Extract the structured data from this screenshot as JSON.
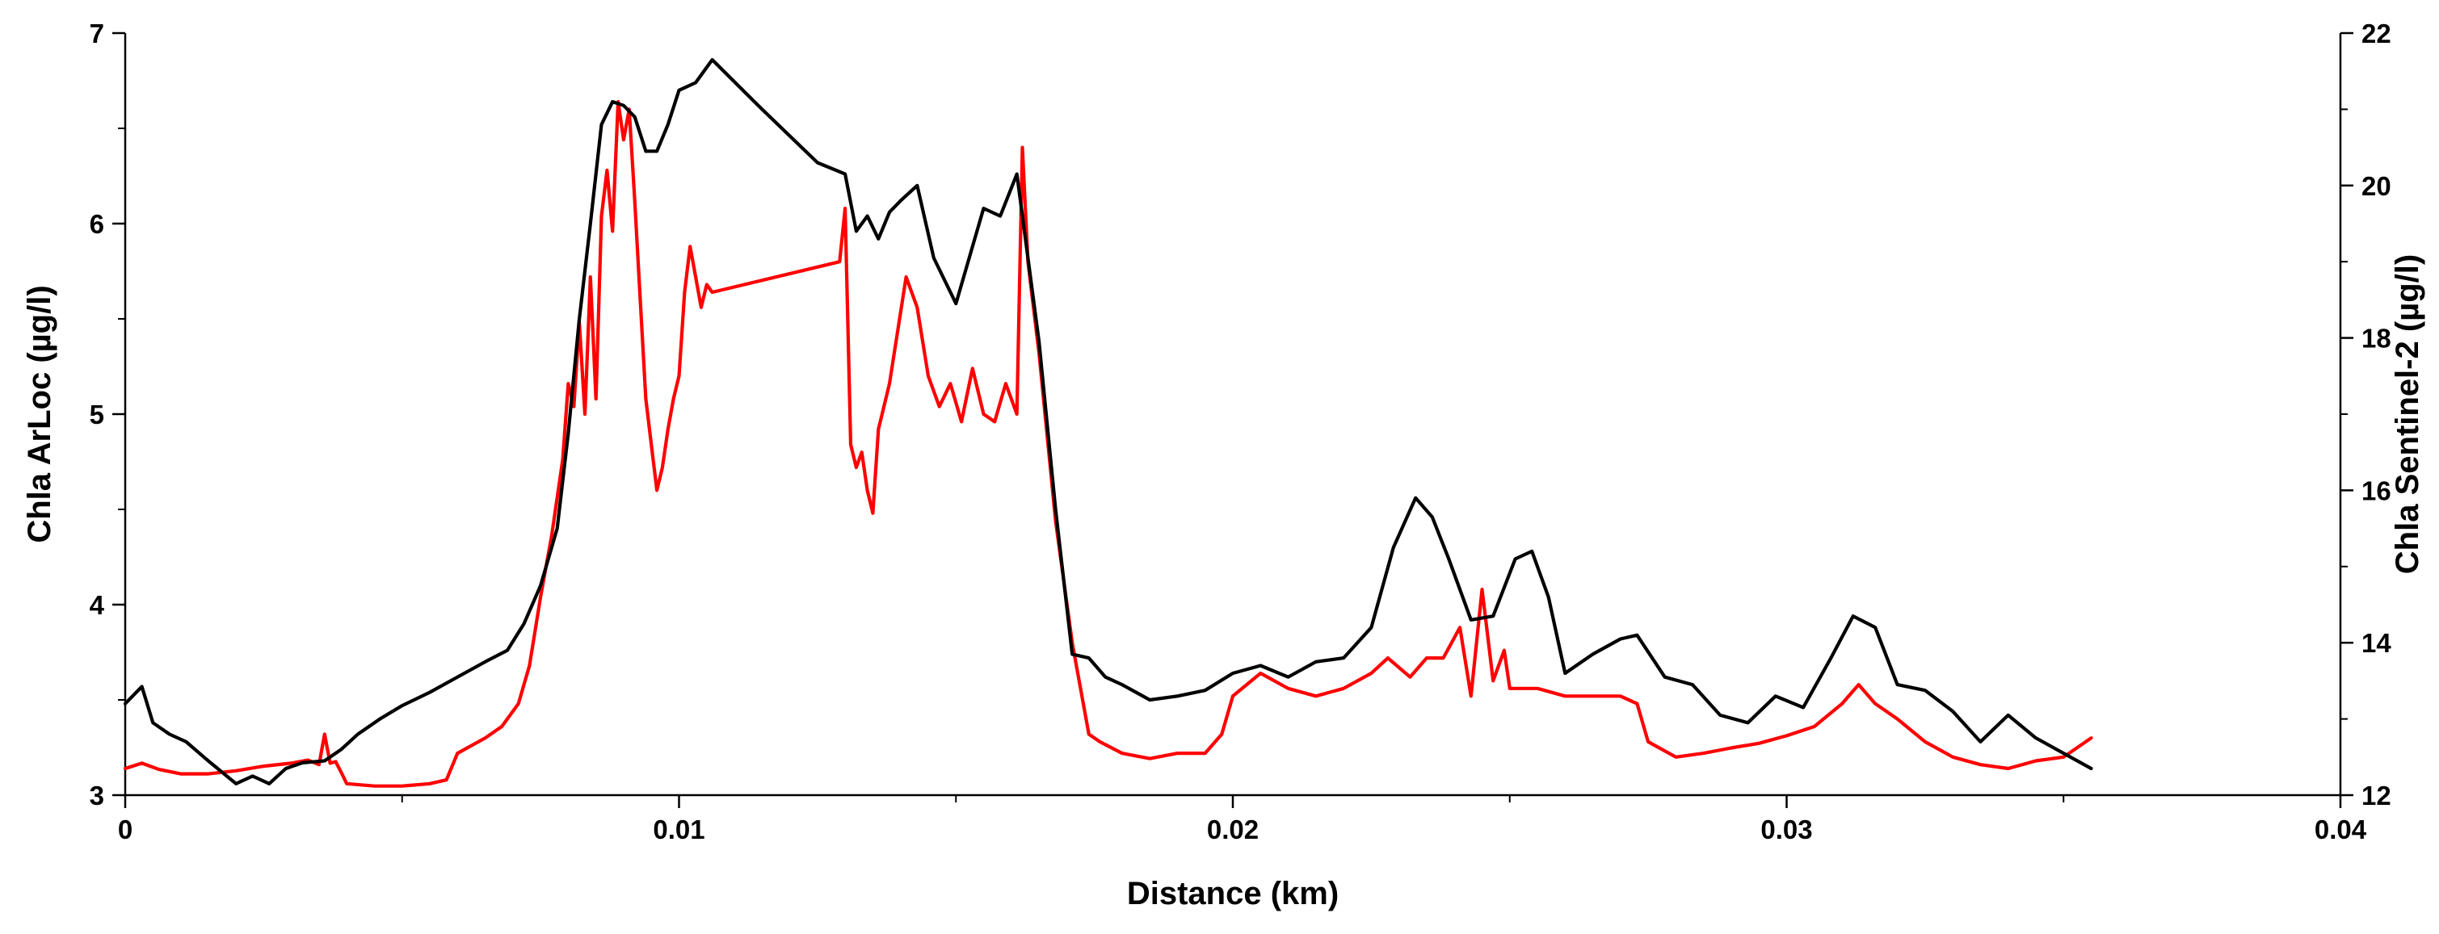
{
  "chart_data": {
    "type": "line",
    "xlabel": "Distance (km)",
    "ylabel_left": "Chla ArLoc (µg/l)",
    "ylabel_right": "Chla Sentinel-2 (µg/l)",
    "xlim": [
      0,
      0.04
    ],
    "ylim_left": [
      3,
      7
    ],
    "ylim_right": [
      12,
      22
    ],
    "x_ticks": [
      "0",
      "0.01",
      "0.02",
      "0.03",
      "0.04"
    ],
    "y_left_ticks": [
      "3",
      "4",
      "5",
      "6",
      "7"
    ],
    "y_right_ticks": [
      "12",
      "14",
      "16",
      "18",
      "20",
      "22"
    ],
    "grid": false,
    "legend": "none",
    "series": [
      {
        "axis": "left",
        "color": "#000000",
        "x": [
          0,
          0.0003,
          0.0005,
          0.0008,
          0.0011,
          0.0015,
          0.002,
          0.0023,
          0.0026,
          0.0029,
          0.0032,
          0.0036,
          0.0039,
          0.0042,
          0.0046,
          0.005,
          0.0055,
          0.006,
          0.0065,
          0.0069,
          0.0072,
          0.0075,
          0.0078,
          0.008,
          0.0082,
          0.0084,
          0.0086,
          0.0088,
          0.009,
          0.0092,
          0.0094,
          0.0096,
          0.0098,
          0.01,
          0.0103,
          0.0106,
          0.0115,
          0.0125,
          0.013,
          0.0132,
          0.0134,
          0.0136,
          0.0138,
          0.014,
          0.0143,
          0.0146,
          0.015,
          0.0155,
          0.0158,
          0.0161,
          0.0165,
          0.0168,
          0.0171,
          0.0174,
          0.0177,
          0.018,
          0.0185,
          0.019,
          0.0195,
          0.02,
          0.0205,
          0.021,
          0.0215,
          0.022,
          0.0225,
          0.0229,
          0.0233,
          0.0236,
          0.0239,
          0.0243,
          0.0247,
          0.0251,
          0.0254,
          0.0257,
          0.026,
          0.0265,
          0.027,
          0.0273,
          0.0278,
          0.0283,
          0.0288,
          0.0293,
          0.0298,
          0.0303,
          0.0308,
          0.0312,
          0.0316,
          0.032,
          0.0325,
          0.033,
          0.0335,
          0.034,
          0.0345,
          0.035,
          0.0355
        ],
        "y": [
          3.48,
          3.57,
          3.38,
          3.32,
          3.28,
          3.18,
          3.06,
          3.1,
          3.06,
          3.14,
          3.17,
          3.18,
          3.24,
          3.32,
          3.4,
          3.47,
          3.54,
          3.62,
          3.7,
          3.76,
          3.9,
          4.1,
          4.4,
          4.9,
          5.5,
          6.0,
          6.52,
          6.64,
          6.62,
          6.56,
          6.38,
          6.38,
          6.52,
          6.7,
          6.74,
          6.86,
          6.6,
          6.32,
          6.26,
          5.96,
          6.04,
          5.92,
          6.06,
          6.12,
          6.2,
          5.82,
          5.58,
          6.08,
          6.04,
          6.26,
          5.38,
          4.5,
          3.74,
          3.72,
          3.62,
          3.58,
          3.5,
          3.52,
          3.55,
          3.64,
          3.68,
          3.62,
          3.7,
          3.72,
          3.88,
          4.3,
          4.56,
          4.46,
          4.24,
          3.92,
          3.94,
          4.24,
          4.28,
          4.04,
          3.64,
          3.74,
          3.82,
          3.84,
          3.62,
          3.58,
          3.42,
          3.38,
          3.52,
          3.46,
          3.72,
          3.94,
          3.88,
          3.58,
          3.55,
          3.44,
          3.28,
          3.42,
          3.3,
          3.22,
          3.14
        ]
      },
      {
        "axis": "right",
        "color": "#ff0000",
        "x": [
          0,
          0.0003,
          0.0006,
          0.001,
          0.0015,
          0.002,
          0.0025,
          0.003,
          0.0033,
          0.0035,
          0.0036,
          0.0037,
          0.0038,
          0.0039,
          0.004,
          0.0045,
          0.005,
          0.0055,
          0.0058,
          0.006,
          0.0065,
          0.0068,
          0.0071,
          0.0073,
          0.0075,
          0.0077,
          0.0079,
          0.008,
          0.0081,
          0.0082,
          0.0083,
          0.0084,
          0.0085,
          0.0086,
          0.0087,
          0.0088,
          0.0089,
          0.009,
          0.0091,
          0.0092,
          0.0093,
          0.0094,
          0.0095,
          0.0096,
          0.0097,
          0.0098,
          0.0099,
          0.01,
          0.0101,
          0.0102,
          0.0103,
          0.0104,
          0.0105,
          0.0106,
          0.0129,
          0.013,
          0.0131,
          0.0132,
          0.0133,
          0.0134,
          0.0135,
          0.0136,
          0.0138,
          0.0141,
          0.0143,
          0.0145,
          0.0147,
          0.0149,
          0.0151,
          0.0153,
          0.0155,
          0.0157,
          0.0159,
          0.0161,
          0.0162,
          0.0163,
          0.0165,
          0.0168,
          0.0171,
          0.0174,
          0.0176,
          0.018,
          0.0185,
          0.019,
          0.0195,
          0.0198,
          0.02,
          0.0205,
          0.021,
          0.0215,
          0.022,
          0.0225,
          0.0228,
          0.0232,
          0.0235,
          0.0238,
          0.0241,
          0.0243,
          0.0245,
          0.0247,
          0.0249,
          0.025,
          0.0255,
          0.026,
          0.0265,
          0.027,
          0.0273,
          0.0275,
          0.028,
          0.0285,
          0.029,
          0.0295,
          0.03,
          0.0305,
          0.031,
          0.0313,
          0.0316,
          0.032,
          0.0325,
          0.033,
          0.0335,
          0.034,
          0.0345,
          0.035,
          0.0355
        ],
        "y": [
          12.35,
          12.42,
          12.34,
          12.28,
          12.28,
          12.32,
          12.38,
          12.42,
          12.46,
          12.4,
          12.8,
          12.42,
          12.44,
          12.3,
          12.15,
          12.12,
          12.12,
          12.15,
          12.2,
          12.55,
          12.75,
          12.9,
          13.2,
          13.7,
          14.6,
          15.4,
          16.4,
          17.4,
          17.1,
          18.2,
          17.0,
          18.8,
          17.2,
          19.6,
          20.2,
          19.4,
          21.1,
          20.6,
          21.0,
          19.8,
          18.5,
          17.2,
          16.6,
          16.0,
          16.3,
          16.8,
          17.2,
          17.5,
          18.6,
          19.2,
          18.8,
          18.4,
          18.7,
          18.6,
          19.0,
          19.7,
          16.6,
          16.3,
          16.5,
          16.0,
          15.7,
          16.8,
          17.4,
          18.8,
          18.4,
          17.5,
          17.1,
          17.4,
          16.9,
          17.6,
          17.0,
          16.9,
          17.4,
          17.0,
          20.5,
          19.0,
          17.8,
          15.6,
          14.0,
          12.8,
          12.7,
          12.55,
          12.48,
          12.55,
          12.55,
          12.8,
          13.3,
          13.6,
          13.4,
          13.3,
          13.4,
          13.6,
          13.8,
          13.55,
          13.8,
          13.8,
          14.2,
          13.3,
          14.7,
          13.5,
          13.9,
          13.4,
          13.4,
          13.3,
          13.3,
          13.3,
          13.2,
          12.7,
          12.5,
          12.55,
          12.62,
          12.68,
          12.78,
          12.9,
          13.2,
          13.45,
          13.2,
          13.0,
          12.7,
          12.5,
          12.4,
          12.35,
          12.45,
          12.5,
          12.75
        ]
      }
    ]
  }
}
